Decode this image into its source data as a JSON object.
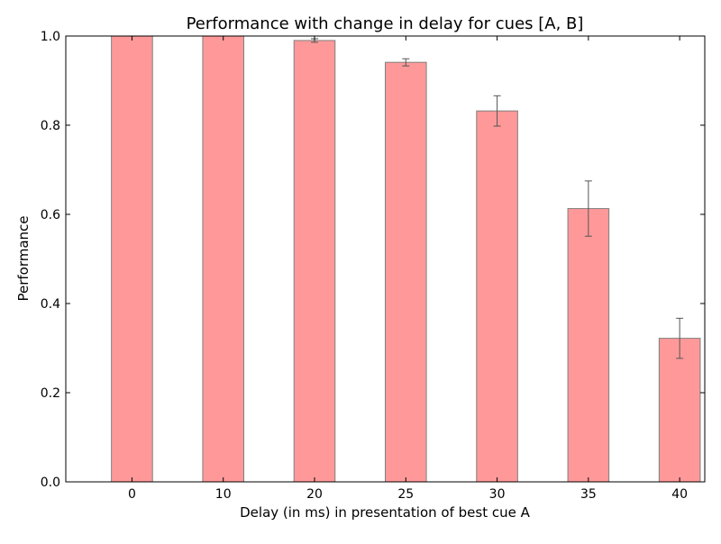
{
  "chart_data": {
    "type": "bar",
    "title": "Performance with change in delay for cues [A, B]",
    "xlabel": "Delay (in ms) in presentation of best cue A",
    "ylabel": "Performance",
    "categories": [
      "0",
      "10",
      "20",
      "25",
      "30",
      "35",
      "40"
    ],
    "values": [
      1.0,
      1.0,
      0.99,
      0.941,
      0.832,
      0.613,
      0.322
    ],
    "errors": [
      0.0,
      0.0,
      0.004,
      0.008,
      0.034,
      0.062,
      0.045
    ],
    "ylim": [
      0,
      1.0
    ],
    "yticks": [
      "0.0",
      "0.2",
      "0.4",
      "0.6",
      "0.8",
      "1.0"
    ],
    "grid": false,
    "colors": {
      "bar_fill": "#ff9999",
      "bar_edge": "#7f7f7f",
      "error_bar": "#555555"
    }
  }
}
